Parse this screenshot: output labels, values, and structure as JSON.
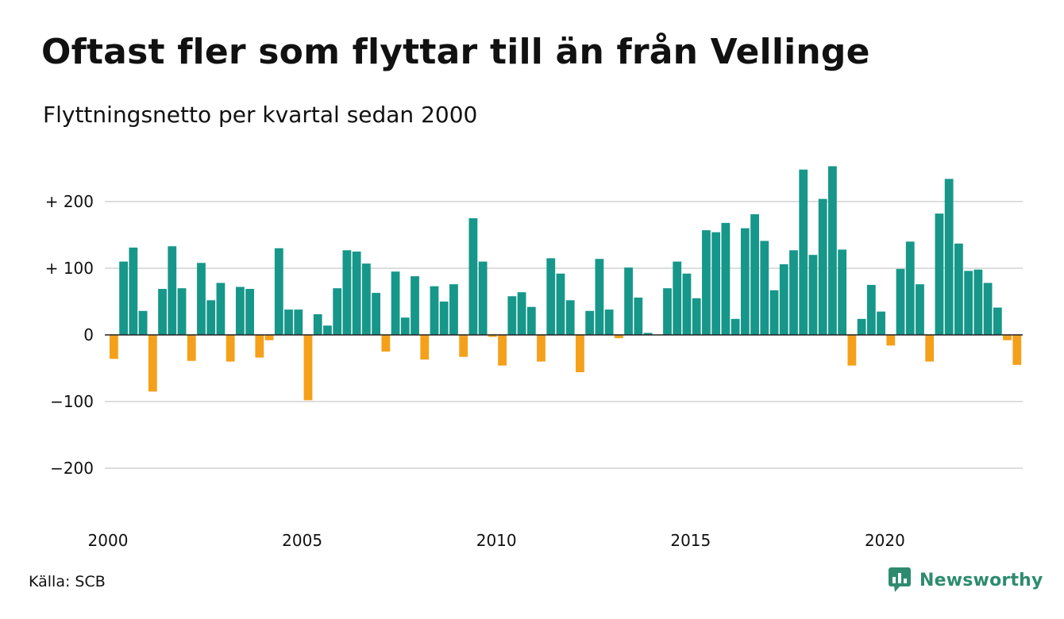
{
  "title": "Oftast fler som flyttar till än från Vellinge",
  "subtitle": "Flyttningsnetto per kvartal sedan 2000",
  "source": "Källa: SCB",
  "brand": {
    "name": "Newsworthy",
    "color": "#2e8b6f",
    "icon": "newsworthy-chart-bubble-icon"
  },
  "colors": {
    "positive": "#16978a",
    "negative": "#f5a01a",
    "grid": "#dddddd",
    "zero_line": "#222222"
  },
  "chart_data": {
    "type": "bar",
    "title": "Oftast fler som flyttar till än från Vellinge",
    "subtitle": "Flyttningsnetto per kvartal sedan 2000",
    "xlabel": "",
    "ylabel": "",
    "ylim": [
      -260,
      260
    ],
    "yticks": [
      {
        "value": 200,
        "label": "+ 200"
      },
      {
        "value": 100,
        "label": "+ 100"
      },
      {
        "value": 0,
        "label": "0"
      },
      {
        "value": -100,
        "label": "−100"
      },
      {
        "value": -200,
        "label": "−200"
      }
    ],
    "xticks": [
      "2000",
      "2005",
      "2010",
      "2015",
      "2020"
    ],
    "x_start": "2000 Q1",
    "frequency": "quarterly",
    "grid": true,
    "values": [
      -36,
      110,
      131,
      36,
      -85,
      69,
      133,
      70,
      -39,
      108,
      52,
      78,
      -40,
      72,
      69,
      -34,
      -8,
      130,
      38,
      38,
      -98,
      31,
      14,
      70,
      127,
      125,
      107,
      63,
      -25,
      95,
      26,
      88,
      -37,
      73,
      50,
      76,
      -33,
      175,
      110,
      -3,
      -46,
      58,
      64,
      42,
      -40,
      115,
      92,
      52,
      -56,
      36,
      114,
      38,
      -5,
      101,
      56,
      3,
      0,
      70,
      110,
      92,
      55,
      157,
      154,
      168,
      24,
      160,
      181,
      141,
      67,
      106,
      127,
      248,
      120,
      204,
      253,
      128,
      -46,
      24,
      75,
      35,
      -16,
      99,
      140,
      76,
      -40,
      182,
      234,
      137,
      96,
      98,
      78,
      41,
      -8,
      -45
    ]
  }
}
